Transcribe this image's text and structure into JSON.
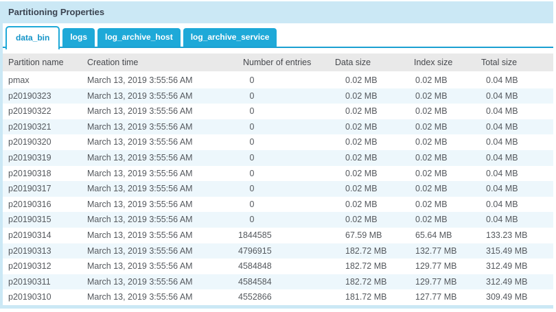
{
  "panel": {
    "title": "Partitioning Properties"
  },
  "tabs": [
    {
      "label": "data_bin",
      "active": true
    },
    {
      "label": "logs",
      "active": false
    },
    {
      "label": "log_archive_host",
      "active": false
    },
    {
      "label": "log_archive_service",
      "active": false
    }
  ],
  "table": {
    "columns": [
      "Partition name",
      "Creation time",
      "Number of entries",
      "Data size",
      "Index size",
      "Total size"
    ],
    "rows": [
      {
        "name": "pmax",
        "creation": "March 13, 2019 3:55:56 AM",
        "entries": "0",
        "data_size": "0.02 MB",
        "index_size": "0.02 MB",
        "total_size": "0.04 MB"
      },
      {
        "name": "p20190323",
        "creation": "March 13, 2019 3:55:56 AM",
        "entries": "0",
        "data_size": "0.02 MB",
        "index_size": "0.02 MB",
        "total_size": "0.04 MB"
      },
      {
        "name": "p20190322",
        "creation": "March 13, 2019 3:55:56 AM",
        "entries": "0",
        "data_size": "0.02 MB",
        "index_size": "0.02 MB",
        "total_size": "0.04 MB"
      },
      {
        "name": "p20190321",
        "creation": "March 13, 2019 3:55:56 AM",
        "entries": "0",
        "data_size": "0.02 MB",
        "index_size": "0.02 MB",
        "total_size": "0.04 MB"
      },
      {
        "name": "p20190320",
        "creation": "March 13, 2019 3:55:56 AM",
        "entries": "0",
        "data_size": "0.02 MB",
        "index_size": "0.02 MB",
        "total_size": "0.04 MB"
      },
      {
        "name": "p20190319",
        "creation": "March 13, 2019 3:55:56 AM",
        "entries": "0",
        "data_size": "0.02 MB",
        "index_size": "0.02 MB",
        "total_size": "0.04 MB"
      },
      {
        "name": "p20190318",
        "creation": "March 13, 2019 3:55:56 AM",
        "entries": "0",
        "data_size": "0.02 MB",
        "index_size": "0.02 MB",
        "total_size": "0.04 MB"
      },
      {
        "name": "p20190317",
        "creation": "March 13, 2019 3:55:56 AM",
        "entries": "0",
        "data_size": "0.02 MB",
        "index_size": "0.02 MB",
        "total_size": "0.04 MB"
      },
      {
        "name": "p20190316",
        "creation": "March 13, 2019 3:55:56 AM",
        "entries": "0",
        "data_size": "0.02 MB",
        "index_size": "0.02 MB",
        "total_size": "0.04 MB"
      },
      {
        "name": "p20190315",
        "creation": "March 13, 2019 3:55:56 AM",
        "entries": "0",
        "data_size": "0.02 MB",
        "index_size": "0.02 MB",
        "total_size": "0.04 MB"
      },
      {
        "name": "p20190314",
        "creation": "March 13, 2019 3:55:56 AM",
        "entries": "1844585",
        "data_size": "67.59 MB",
        "index_size": "65.64 MB",
        "total_size": "133.23 MB"
      },
      {
        "name": "p20190313",
        "creation": "March 13, 2019 3:55:56 AM",
        "entries": "4796915",
        "data_size": "182.72 MB",
        "index_size": "132.77 MB",
        "total_size": "315.49 MB"
      },
      {
        "name": "p20190312",
        "creation": "March 13, 2019 3:55:56 AM",
        "entries": "4584848",
        "data_size": "182.72 MB",
        "index_size": "129.77 MB",
        "total_size": "312.49 MB"
      },
      {
        "name": "p20190311",
        "creation": "March 13, 2019 3:55:56 AM",
        "entries": "4584584",
        "data_size": "182.72 MB",
        "index_size": "129.77 MB",
        "total_size": "312.49 MB"
      },
      {
        "name": "p20190310",
        "creation": "March 13, 2019 3:55:56 AM",
        "entries": "4552866",
        "data_size": "181.72 MB",
        "index_size": "127.77 MB",
        "total_size": "309.49 MB"
      }
    ]
  },
  "colors": {
    "panel_border": "#cbe8f5",
    "tab_blue": "#1ea9d8",
    "tab_underline": "#199fd1",
    "active_tab_text": "#1494c8",
    "table_header_bg": "#e9e9e9",
    "row_alt_bg": "#edf7fc",
    "title_text": "#3a4350",
    "cell_text": "#54585d"
  }
}
